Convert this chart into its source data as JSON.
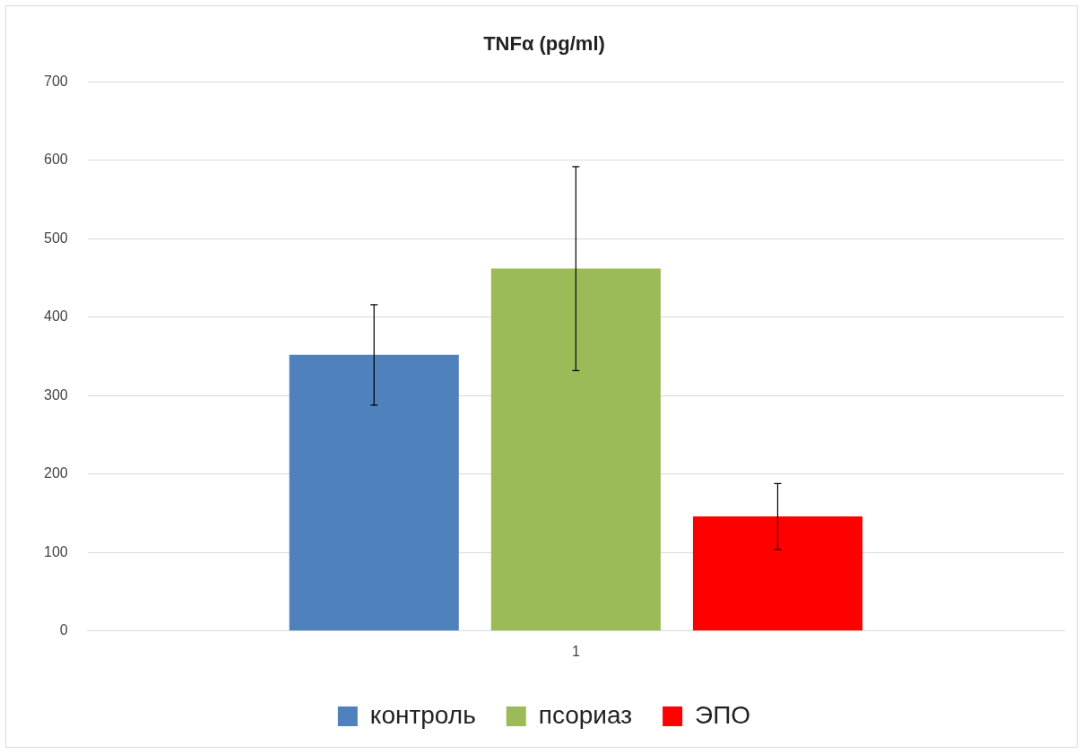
{
  "chart_data": {
    "type": "bar",
    "title": "TNFα (pg/ml)",
    "categories": [
      "1"
    ],
    "series": [
      {
        "name": "контроль",
        "color": "#4f81bd",
        "values": [
          352
        ],
        "errors": [
          64
        ]
      },
      {
        "name": "псориаз",
        "color": "#9bbb59",
        "values": [
          462
        ],
        "errors": [
          130
        ]
      },
      {
        "name": "ЭПО",
        "color": "#ff0000",
        "values": [
          146
        ],
        "errors": [
          42
        ]
      }
    ],
    "ylim": [
      0,
      700
    ],
    "yticks": [
      0,
      100,
      200,
      300,
      400,
      500,
      600,
      700
    ],
    "grid": "y",
    "legend": "bottom"
  }
}
